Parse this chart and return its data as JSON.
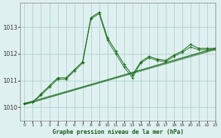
{
  "title": "Graphe pression niveau de la mer (hPa)",
  "bg_color": "#dff0f0",
  "grid_color": "#aecece",
  "line_color": "#1a6b1a",
  "xlim": [
    -0.5,
    23
  ],
  "ylim": [
    1009.5,
    1013.9
  ],
  "yticks": [
    1010,
    1011,
    1012,
    1013
  ],
  "xticks": [
    0,
    1,
    2,
    3,
    4,
    5,
    6,
    7,
    8,
    9,
    10,
    11,
    12,
    13,
    14,
    15,
    16,
    17,
    18,
    19,
    20,
    21,
    22,
    23
  ],
  "series": [
    {
      "x": [
        0,
        1,
        2,
        3,
        4,
        5,
        6,
        7,
        8,
        9,
        10,
        11,
        12,
        13,
        14,
        15,
        16,
        17,
        18,
        19,
        20,
        21,
        22,
        23
      ],
      "y": [
        1010.15,
        1010.2,
        1010.45,
        1010.75,
        1011.05,
        1011.1,
        1011.4,
        1011.65,
        1013.35,
        1013.55,
        1012.55,
        1012.05,
        1011.55,
        1011.15,
        1011.65,
        1011.85,
        1011.75,
        1011.75,
        1011.9,
        1012.1,
        1012.3,
        1012.2,
        1012.2,
        1012.2
      ]
    },
    {
      "x": [
        0,
        1,
        2,
        3,
        4,
        5,
        6,
        7,
        8,
        9,
        10,
        11,
        12,
        13,
        14,
        15,
        16,
        17,
        18,
        19,
        20,
        21,
        22,
        23
      ],
      "y": [
        1010.15,
        1010.25,
        1010.5,
        1010.8,
        1011.05,
        1011.15,
        1011.4,
        1011.65,
        1013.4,
        1013.6,
        1012.6,
        1012.1,
        1011.6,
        1011.2,
        1011.7,
        1011.9,
        1011.8,
        1011.75,
        1011.95,
        1012.1,
        1012.35,
        1012.2,
        1012.2,
        1012.2
      ]
    },
    {
      "x": [
        0,
        1,
        23
      ],
      "y": [
        1010.15,
        1010.2,
        1012.2
      ]
    },
    {
      "x": [
        0,
        1,
        23
      ],
      "y": [
        1010.15,
        1010.2,
        1012.2
      ]
    },
    {
      "x": [
        1,
        4,
        10,
        16,
        19,
        20,
        23
      ],
      "y": [
        1010.2,
        1011.05,
        1012.55,
        1011.75,
        1012.1,
        1012.3,
        1012.2
      ]
    },
    {
      "x": [
        1,
        4,
        10,
        16,
        19,
        20,
        23
      ],
      "y": [
        1010.2,
        1011.05,
        1012.6,
        1011.8,
        1012.1,
        1012.35,
        1012.2
      ]
    }
  ],
  "straight_lines": [
    {
      "x": [
        0,
        23
      ],
      "y": [
        1010.15,
        1012.2
      ]
    },
    {
      "x": [
        0,
        23
      ],
      "y": [
        1010.15,
        1012.2
      ]
    },
    {
      "x": [
        0,
        23
      ],
      "y": [
        1010.15,
        1012.15
      ]
    },
    {
      "x": [
        0,
        23
      ],
      "y": [
        1010.1,
        1012.15
      ]
    }
  ]
}
